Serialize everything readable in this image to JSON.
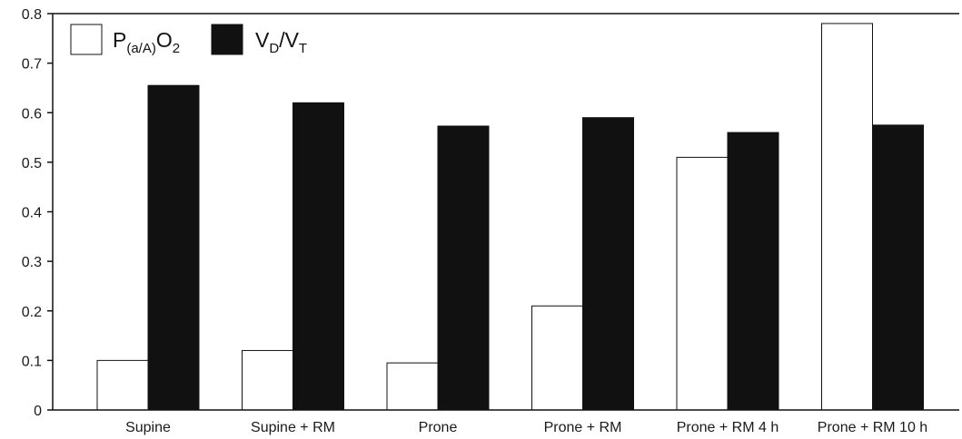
{
  "chart_data": {
    "type": "bar",
    "title": "",
    "xlabel": "",
    "ylabel": "",
    "ylim": [
      0,
      0.8
    ],
    "yticks": [
      "0",
      "0.1",
      "0.2",
      "0.3",
      "0.4",
      "0.5",
      "0.6",
      "0.7",
      "0.8"
    ],
    "categories": [
      "Supine",
      "Supine + RM",
      "Prone",
      "Prone + RM",
      "Prone + RM 4 h",
      "Prone + RM 10 h"
    ],
    "series": [
      {
        "name": "P(a/A)O2",
        "legend": {
          "main": "P",
          "sub": "(a/A)",
          "main2": "O",
          "sub2": "2"
        },
        "fill": "#ffffff",
        "values": [
          0.1,
          0.12,
          0.095,
          0.21,
          0.51,
          0.78
        ]
      },
      {
        "name": "VD/VT",
        "legend": {
          "main": "V",
          "sub": "D",
          "main2": "/V",
          "sub2": "T"
        },
        "fill": "#111111",
        "values": [
          0.655,
          0.62,
          0.573,
          0.59,
          0.56,
          0.575
        ]
      }
    ],
    "grid": false,
    "legend_position": "top-left"
  }
}
